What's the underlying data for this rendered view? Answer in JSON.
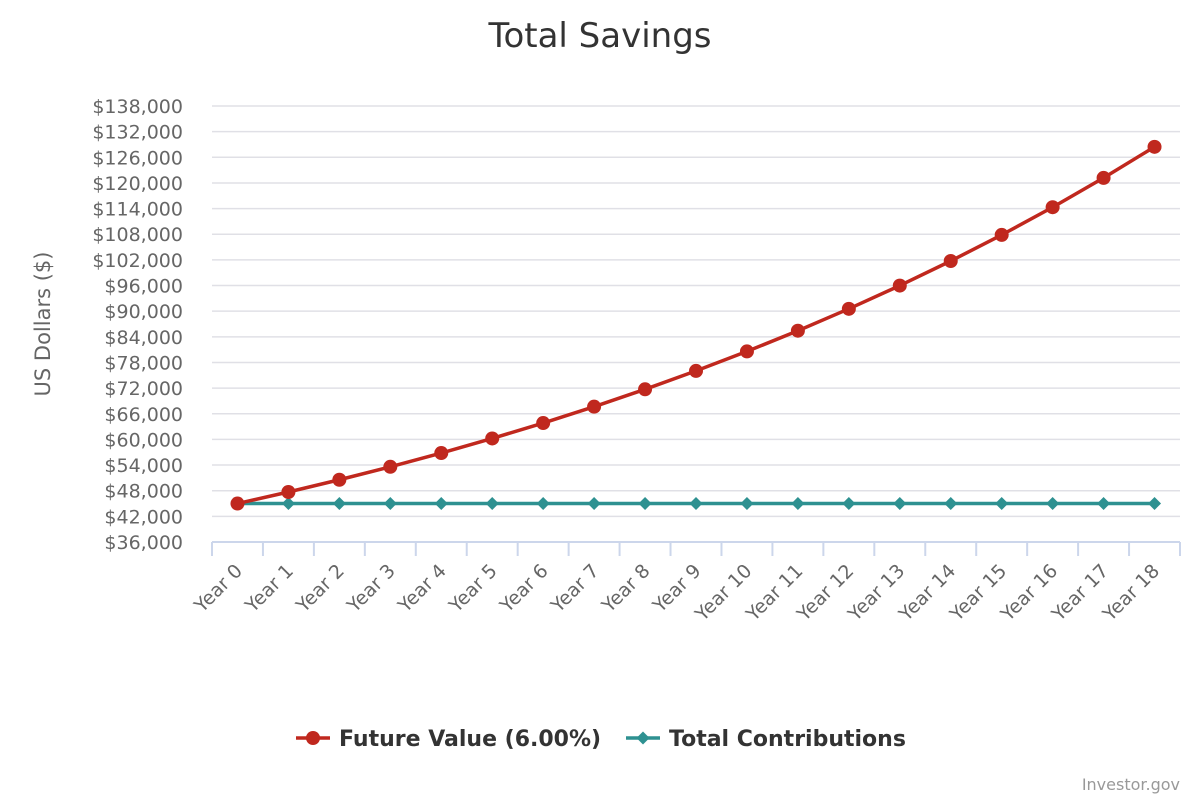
{
  "chart_data": {
    "type": "line",
    "title": "Total Savings",
    "xlabel": "",
    "ylabel": "US Dollars ($)",
    "categories": [
      "Year 0",
      "Year 1",
      "Year 2",
      "Year 3",
      "Year 4",
      "Year 5",
      "Year 6",
      "Year 7",
      "Year 8",
      "Year 9",
      "Year 10",
      "Year 11",
      "Year 12",
      "Year 13",
      "Year 14",
      "Year 15",
      "Year 16",
      "Year 17",
      "Year 18"
    ],
    "ylim": [
      36000,
      138000
    ],
    "yticks": [
      36000,
      42000,
      48000,
      54000,
      60000,
      66000,
      72000,
      78000,
      84000,
      90000,
      96000,
      102000,
      108000,
      114000,
      120000,
      126000,
      132000,
      138000
    ],
    "ytick_labels": [
      "$36,000",
      "$42,000",
      "$48,000",
      "$54,000",
      "$60,000",
      "$66,000",
      "$72,000",
      "$78,000",
      "$84,000",
      "$90,000",
      "$96,000",
      "$102,000",
      "$108,000",
      "$114,000",
      "$120,000",
      "$126,000",
      "$132,000",
      "$138,000"
    ],
    "grid": true,
    "legend_position": "bottom-center",
    "series": [
      {
        "name": "Future Value (6.00%)",
        "color": "#c0281e",
        "marker": "circle",
        "values": [
          45000,
          47700,
          50562,
          53596,
          56811,
          60220,
          63833,
          67663,
          71723,
          76027,
          80588,
          85424,
          90549,
          95982,
          101741,
          107845,
          114316,
          121175,
          128446
        ]
      },
      {
        "name": "Total Contributions",
        "color": "#2e9191",
        "marker": "diamond",
        "values": [
          45000,
          45000,
          45000,
          45000,
          45000,
          45000,
          45000,
          45000,
          45000,
          45000,
          45000,
          45000,
          45000,
          45000,
          45000,
          45000,
          45000,
          45000,
          45000
        ]
      }
    ],
    "credit": "Investor.gov"
  },
  "colors": {
    "grid": "#e0e0e6",
    "axis": "#ccd6eb",
    "text": "#666666",
    "title": "#333333"
  }
}
